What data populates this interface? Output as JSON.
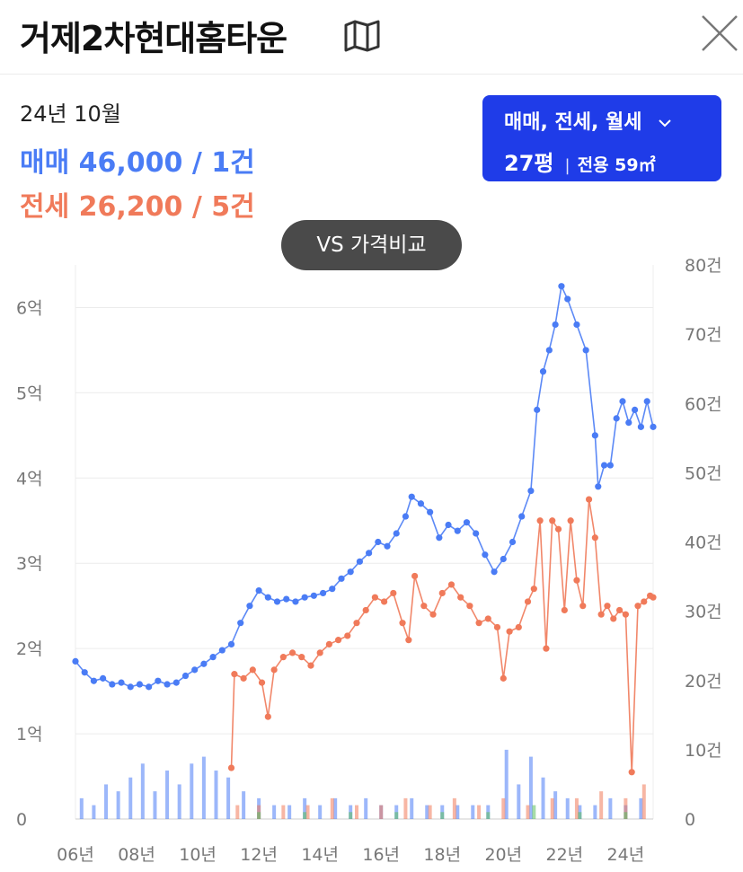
{
  "header": {
    "title": "거제2차현대홈타운",
    "map_icon": "map-icon",
    "close_icon": "close-icon"
  },
  "summary": {
    "period": "24년 10월",
    "sale": "매매 46,000 / 1건",
    "jeonse": "전세 26,200 / 5건"
  },
  "filter": {
    "types_label": "매매, 전세, 월세",
    "area_label": "27평",
    "exclusive_label": "전용 59㎡",
    "chevron_icon": "chevron-down-icon"
  },
  "vs_button": {
    "label": "VS 가격비교"
  },
  "colors": {
    "sale": "#4a7cf5",
    "jeonse": "#f07a5a",
    "monthly": "#5cbf5c",
    "accent": "#1f3ce8",
    "vs_bg": "#4a4a4a",
    "grid": "#ececec"
  },
  "chart_data": {
    "type": "line",
    "x_ticks": [
      "06년",
      "08년",
      "10년",
      "12년",
      "14년",
      "16년",
      "18년",
      "20년",
      "22년",
      "24년"
    ],
    "x_range": [
      2006,
      2024.9
    ],
    "y_left_ticks": [
      "0",
      "1억",
      "2억",
      "3억",
      "4억",
      "5억",
      "6억"
    ],
    "y_left_range": [
      0,
      6.5
    ],
    "y_right_ticks": [
      "0",
      "10건",
      "20건",
      "30건",
      "40건",
      "50건",
      "60건",
      "70건",
      "80건"
    ],
    "y_right_range": [
      0,
      80
    ],
    "grid": true,
    "series": [
      {
        "key": "sale",
        "type": "line",
        "points": [
          [
            2006.0,
            1.85
          ],
          [
            2006.3,
            1.72
          ],
          [
            2006.6,
            1.62
          ],
          [
            2006.9,
            1.65
          ],
          [
            2007.2,
            1.58
          ],
          [
            2007.5,
            1.6
          ],
          [
            2007.8,
            1.55
          ],
          [
            2008.1,
            1.58
          ],
          [
            2008.4,
            1.55
          ],
          [
            2008.7,
            1.62
          ],
          [
            2009.0,
            1.58
          ],
          [
            2009.3,
            1.6
          ],
          [
            2009.6,
            1.68
          ],
          [
            2009.9,
            1.75
          ],
          [
            2010.2,
            1.82
          ],
          [
            2010.5,
            1.9
          ],
          [
            2010.8,
            1.98
          ],
          [
            2011.1,
            2.05
          ],
          [
            2011.4,
            2.3
          ],
          [
            2011.7,
            2.5
          ],
          [
            2012.0,
            2.68
          ],
          [
            2012.3,
            2.6
          ],
          [
            2012.6,
            2.55
          ],
          [
            2012.9,
            2.58
          ],
          [
            2013.2,
            2.55
          ],
          [
            2013.5,
            2.6
          ],
          [
            2013.8,
            2.62
          ],
          [
            2014.1,
            2.65
          ],
          [
            2014.4,
            2.7
          ],
          [
            2014.7,
            2.82
          ],
          [
            2015.0,
            2.9
          ],
          [
            2015.3,
            3.02
          ],
          [
            2015.6,
            3.12
          ],
          [
            2015.9,
            3.25
          ],
          [
            2016.2,
            3.2
          ],
          [
            2016.5,
            3.35
          ],
          [
            2016.8,
            3.55
          ],
          [
            2017.0,
            3.78
          ],
          [
            2017.3,
            3.7
          ],
          [
            2017.6,
            3.6
          ],
          [
            2017.9,
            3.3
          ],
          [
            2018.2,
            3.45
          ],
          [
            2018.5,
            3.38
          ],
          [
            2018.8,
            3.48
          ],
          [
            2019.1,
            3.35
          ],
          [
            2019.4,
            3.1
          ],
          [
            2019.7,
            2.9
          ],
          [
            2020.0,
            3.05
          ],
          [
            2020.3,
            3.25
          ],
          [
            2020.6,
            3.55
          ],
          [
            2020.9,
            3.85
          ],
          [
            2021.1,
            4.8
          ],
          [
            2021.3,
            5.25
          ],
          [
            2021.5,
            5.5
          ],
          [
            2021.7,
            5.8
          ],
          [
            2021.9,
            6.25
          ],
          [
            2022.1,
            6.1
          ],
          [
            2022.4,
            5.8
          ],
          [
            2022.7,
            5.5
          ],
          [
            2023.0,
            4.5
          ],
          [
            2023.1,
            3.9
          ],
          [
            2023.3,
            4.15
          ],
          [
            2023.5,
            4.15
          ],
          [
            2023.7,
            4.7
          ],
          [
            2023.9,
            4.9
          ],
          [
            2024.1,
            4.65
          ],
          [
            2024.3,
            4.8
          ],
          [
            2024.5,
            4.6
          ],
          [
            2024.7,
            4.9
          ],
          [
            2024.9,
            4.6
          ]
        ]
      },
      {
        "key": "jeonse",
        "type": "line",
        "points": [
          [
            2011.1,
            0.6
          ],
          [
            2011.2,
            1.7
          ],
          [
            2011.5,
            1.65
          ],
          [
            2011.8,
            1.75
          ],
          [
            2012.1,
            1.6
          ],
          [
            2012.3,
            1.2
          ],
          [
            2012.5,
            1.75
          ],
          [
            2012.8,
            1.9
          ],
          [
            2013.1,
            1.95
          ],
          [
            2013.4,
            1.9
          ],
          [
            2013.7,
            1.8
          ],
          [
            2014.0,
            1.95
          ],
          [
            2014.3,
            2.05
          ],
          [
            2014.6,
            2.1
          ],
          [
            2014.9,
            2.15
          ],
          [
            2015.2,
            2.3
          ],
          [
            2015.5,
            2.45
          ],
          [
            2015.8,
            2.6
          ],
          [
            2016.1,
            2.55
          ],
          [
            2016.4,
            2.65
          ],
          [
            2016.7,
            2.3
          ],
          [
            2016.9,
            2.1
          ],
          [
            2017.1,
            2.85
          ],
          [
            2017.4,
            2.5
          ],
          [
            2017.7,
            2.4
          ],
          [
            2018.0,
            2.65
          ],
          [
            2018.3,
            2.75
          ],
          [
            2018.6,
            2.6
          ],
          [
            2018.9,
            2.5
          ],
          [
            2019.2,
            2.3
          ],
          [
            2019.5,
            2.35
          ],
          [
            2019.8,
            2.25
          ],
          [
            2020.0,
            1.65
          ],
          [
            2020.2,
            2.2
          ],
          [
            2020.5,
            2.25
          ],
          [
            2020.8,
            2.55
          ],
          [
            2021.0,
            2.7
          ],
          [
            2021.2,
            3.5
          ],
          [
            2021.4,
            2.0
          ],
          [
            2021.6,
            3.5
          ],
          [
            2021.8,
            3.4
          ],
          [
            2022.0,
            2.45
          ],
          [
            2022.2,
            3.5
          ],
          [
            2022.4,
            2.8
          ],
          [
            2022.6,
            2.5
          ],
          [
            2022.8,
            3.75
          ],
          [
            2023.0,
            3.3
          ],
          [
            2023.2,
            2.4
          ],
          [
            2023.4,
            2.5
          ],
          [
            2023.6,
            2.35
          ],
          [
            2023.8,
            2.45
          ],
          [
            2024.0,
            2.4
          ],
          [
            2024.2,
            0.55
          ],
          [
            2024.4,
            2.5
          ],
          [
            2024.6,
            2.55
          ],
          [
            2024.8,
            2.62
          ],
          [
            2024.9,
            2.6
          ]
        ]
      }
    ],
    "volume_bars": {
      "sale": [
        [
          2006.2,
          3
        ],
        [
          2006.6,
          2
        ],
        [
          2007.0,
          5
        ],
        [
          2007.4,
          4
        ],
        [
          2007.8,
          6
        ],
        [
          2008.2,
          8
        ],
        [
          2008.6,
          4
        ],
        [
          2009.0,
          7
        ],
        [
          2009.4,
          5
        ],
        [
          2009.8,
          8
        ],
        [
          2010.2,
          9
        ],
        [
          2010.6,
          7
        ],
        [
          2011.0,
          6
        ],
        [
          2011.5,
          4
        ],
        [
          2012.0,
          3
        ],
        [
          2012.5,
          2
        ],
        [
          2013.0,
          2
        ],
        [
          2013.5,
          3
        ],
        [
          2014.0,
          2
        ],
        [
          2014.5,
          3
        ],
        [
          2015.0,
          2
        ],
        [
          2015.5,
          3
        ],
        [
          2016.0,
          2
        ],
        [
          2016.5,
          2
        ],
        [
          2017.0,
          3
        ],
        [
          2017.5,
          2
        ],
        [
          2018.0,
          2
        ],
        [
          2018.5,
          2
        ],
        [
          2019.0,
          2
        ],
        [
          2019.5,
          2
        ],
        [
          2020.1,
          10
        ],
        [
          2020.5,
          5
        ],
        [
          2020.9,
          9
        ],
        [
          2021.3,
          6
        ],
        [
          2021.7,
          4
        ],
        [
          2022.1,
          3
        ],
        [
          2022.5,
          2
        ],
        [
          2023.0,
          2
        ],
        [
          2023.5,
          3
        ],
        [
          2024.0,
          2
        ],
        [
          2024.5,
          3
        ]
      ],
      "jeonse": [
        [
          2011.3,
          2
        ],
        [
          2012.0,
          2
        ],
        [
          2012.8,
          2
        ],
        [
          2013.6,
          2
        ],
        [
          2014.4,
          3
        ],
        [
          2015.2,
          2
        ],
        [
          2016.0,
          2
        ],
        [
          2016.8,
          3
        ],
        [
          2017.6,
          2
        ],
        [
          2018.4,
          3
        ],
        [
          2019.2,
          2
        ],
        [
          2020.0,
          3
        ],
        [
          2020.8,
          2
        ],
        [
          2021.6,
          3
        ],
        [
          2022.4,
          3
        ],
        [
          2023.2,
          4
        ],
        [
          2024.0,
          3
        ],
        [
          2024.6,
          5
        ]
      ],
      "monthly": [
        [
          2012.0,
          1
        ],
        [
          2013.5,
          1
        ],
        [
          2015.0,
          1
        ],
        [
          2016.5,
          1
        ],
        [
          2018.0,
          1
        ],
        [
          2019.5,
          1
        ],
        [
          2021.0,
          2
        ],
        [
          2022.5,
          1
        ],
        [
          2024.0,
          1
        ]
      ]
    }
  }
}
